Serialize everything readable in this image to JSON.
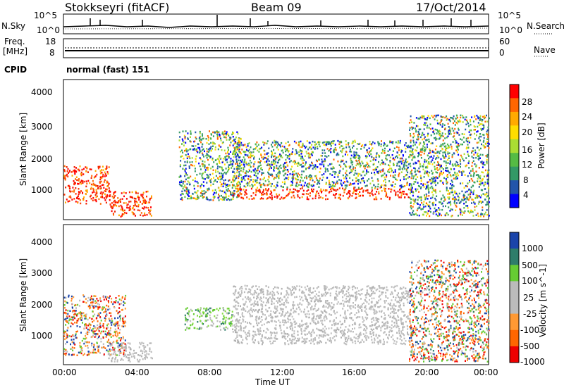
{
  "header": {
    "station": "Stokkseyri (fitACF)",
    "beam": "Beam 09",
    "date": "17/Oct/2014"
  },
  "left_labels": {
    "nsky": "N.Sky",
    "freq_line1": "Freq.",
    "freq_line2": "[MHz]",
    "cpid": "CPID"
  },
  "right_labels": {
    "nsearch": "N.Search",
    "nave": "Nave"
  },
  "cpid_value": "normal (fast) 151",
  "noise_axis": {
    "left_ticks": [
      "10^5",
      "10^0"
    ],
    "right_ticks": [
      "10^5",
      "10^0"
    ]
  },
  "freq_axis": {
    "left_ticks": [
      "18",
      "8"
    ],
    "right_ticks": [
      "60",
      "0"
    ]
  },
  "range_ticks": [
    "4000",
    "3000",
    "2000",
    "1000"
  ],
  "time_ticks": [
    "00:00",
    "04:00",
    "08:00",
    "12:00",
    "16:00",
    "20:00",
    "00:00"
  ],
  "xlabel": "Time UT",
  "chart_data": [
    {
      "type": "heatmap",
      "title": "",
      "xlabel": "Time UT",
      "ylabel": "Slant Range [km]",
      "xlim": [
        0,
        24
      ],
      "ylim": [
        180,
        4600
      ],
      "colorbar": {
        "label": "Power [dB]",
        "ticks": [
          "28",
          "24",
          "20",
          "16",
          "12",
          "8",
          "4"
        ],
        "colors": [
          "#ff0000",
          "#ff6600",
          "#ffaa00",
          "#ffdd00",
          "#aadd33",
          "#55bb44",
          "#339966",
          "#2255aa",
          "#0000ff"
        ]
      },
      "regions": [
        {
          "t0": 0.0,
          "t1": 2.6,
          "r0": 700,
          "r1": 1900,
          "level": "high"
        },
        {
          "t0": 2.6,
          "t1": 5.0,
          "r0": 300,
          "r1": 1100,
          "level": "high"
        },
        {
          "t0": 6.5,
          "t1": 10.0,
          "r0": 800,
          "r1": 3000,
          "level": "mid"
        },
        {
          "t0": 9.5,
          "t1": 19.5,
          "r0": 850,
          "r1": 1200,
          "level": "high"
        },
        {
          "t0": 9.5,
          "t1": 19.5,
          "r0": 1200,
          "r1": 2700,
          "level": "mid"
        },
        {
          "t0": 19.5,
          "t1": 24.0,
          "r0": 300,
          "r1": 3500,
          "level": "mid"
        }
      ]
    },
    {
      "type": "heatmap",
      "title": "",
      "xlabel": "Time UT",
      "ylabel": "Slant Range [km]",
      "xlim": [
        0,
        24
      ],
      "ylim": [
        180,
        4600
      ],
      "colorbar": {
        "label": "Velocity [m s^-1]",
        "ticks": [
          "1000",
          "500",
          "100",
          "25",
          "-25",
          "-100",
          "-500",
          "-1000"
        ],
        "colors": [
          "#1a44aa",
          "#2e7d6a",
          "#66cc33",
          "#bbbbbb",
          "#bbbbbb",
          "#ff9933",
          "#ff6600",
          "#ee0000"
        ]
      },
      "regions": [
        {
          "t0": 0.0,
          "t1": 3.5,
          "r0": 500,
          "r1": 2400,
          "level": "negative"
        },
        {
          "t0": 2.5,
          "t1": 5.0,
          "r0": 300,
          "r1": 900,
          "level": "ground"
        },
        {
          "t0": 6.8,
          "t1": 9.5,
          "r0": 1300,
          "r1": 2000,
          "level": "positive"
        },
        {
          "t0": 9.5,
          "t1": 19.5,
          "r0": 850,
          "r1": 2700,
          "level": "ground"
        },
        {
          "t0": 19.5,
          "t1": 24.0,
          "r0": 300,
          "r1": 3500,
          "level": "mixed"
        }
      ]
    }
  ]
}
